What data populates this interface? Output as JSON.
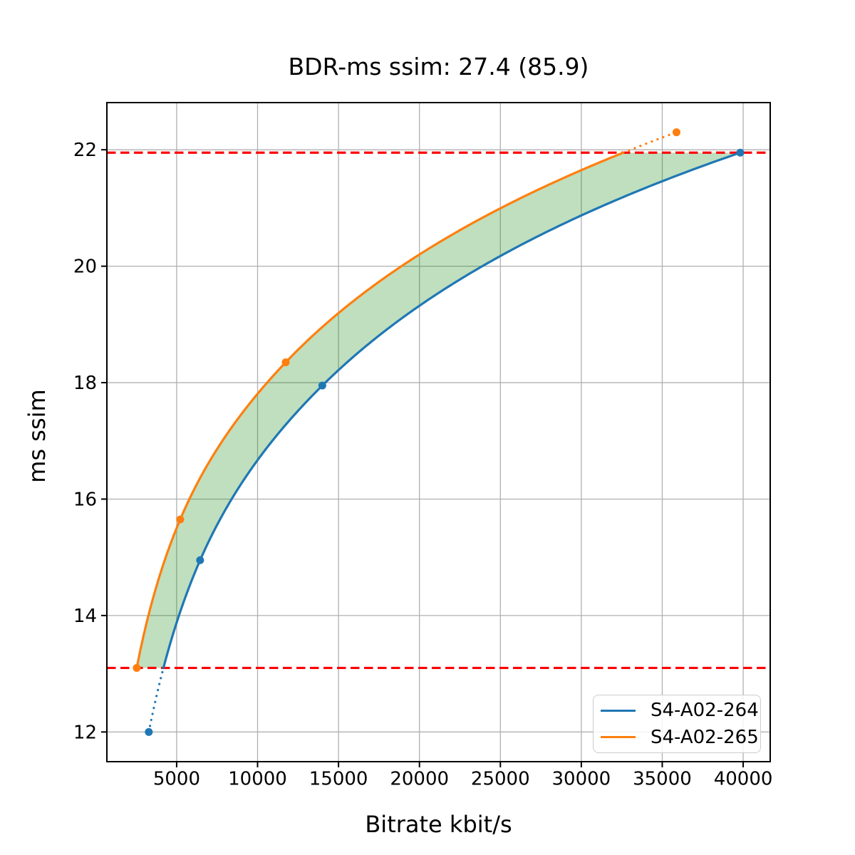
{
  "chart_data": {
    "type": "line",
    "title": "BDR-ms ssim: 27.4 (85.9)",
    "xlabel": "Bitrate kbit/s",
    "ylabel": "ms ssim",
    "xlim": [
      690,
      41670
    ],
    "ylim": [
      11.49,
      22.81
    ],
    "xticks": [
      5000,
      10000,
      15000,
      20000,
      25000,
      30000,
      35000,
      40000
    ],
    "yticks": [
      12,
      14,
      16,
      18,
      20,
      22
    ],
    "grid": true,
    "colors": {
      "grid": "#b0b0b0",
      "spine": "#000000",
      "hline": "#ff0000",
      "fill": "#008000",
      "tick_text": "#000000"
    },
    "fill_opacity": 0.25,
    "series": [
      {
        "name": "S4-A02-264",
        "color": "#1f77b4",
        "x": [
          3280,
          6450,
          14000,
          39820
        ],
        "y": [
          12.0,
          14.95,
          17.95,
          21.95
        ]
      },
      {
        "name": "S4-A02-265",
        "color": "#ff7f0e",
        "x": [
          2535,
          5220,
          11740,
          35880
        ],
        "y": [
          13.1,
          15.65,
          18.35,
          22.3
        ]
      }
    ],
    "hlines": [
      13.1,
      21.95
    ],
    "fill_between_quality_range": [
      13.1,
      21.95
    ],
    "line_style": {
      "solid_within_quality_range": [
        13.1,
        21.95
      ],
      "dotted_outside": true
    },
    "legend": {
      "position": "lower right"
    }
  }
}
